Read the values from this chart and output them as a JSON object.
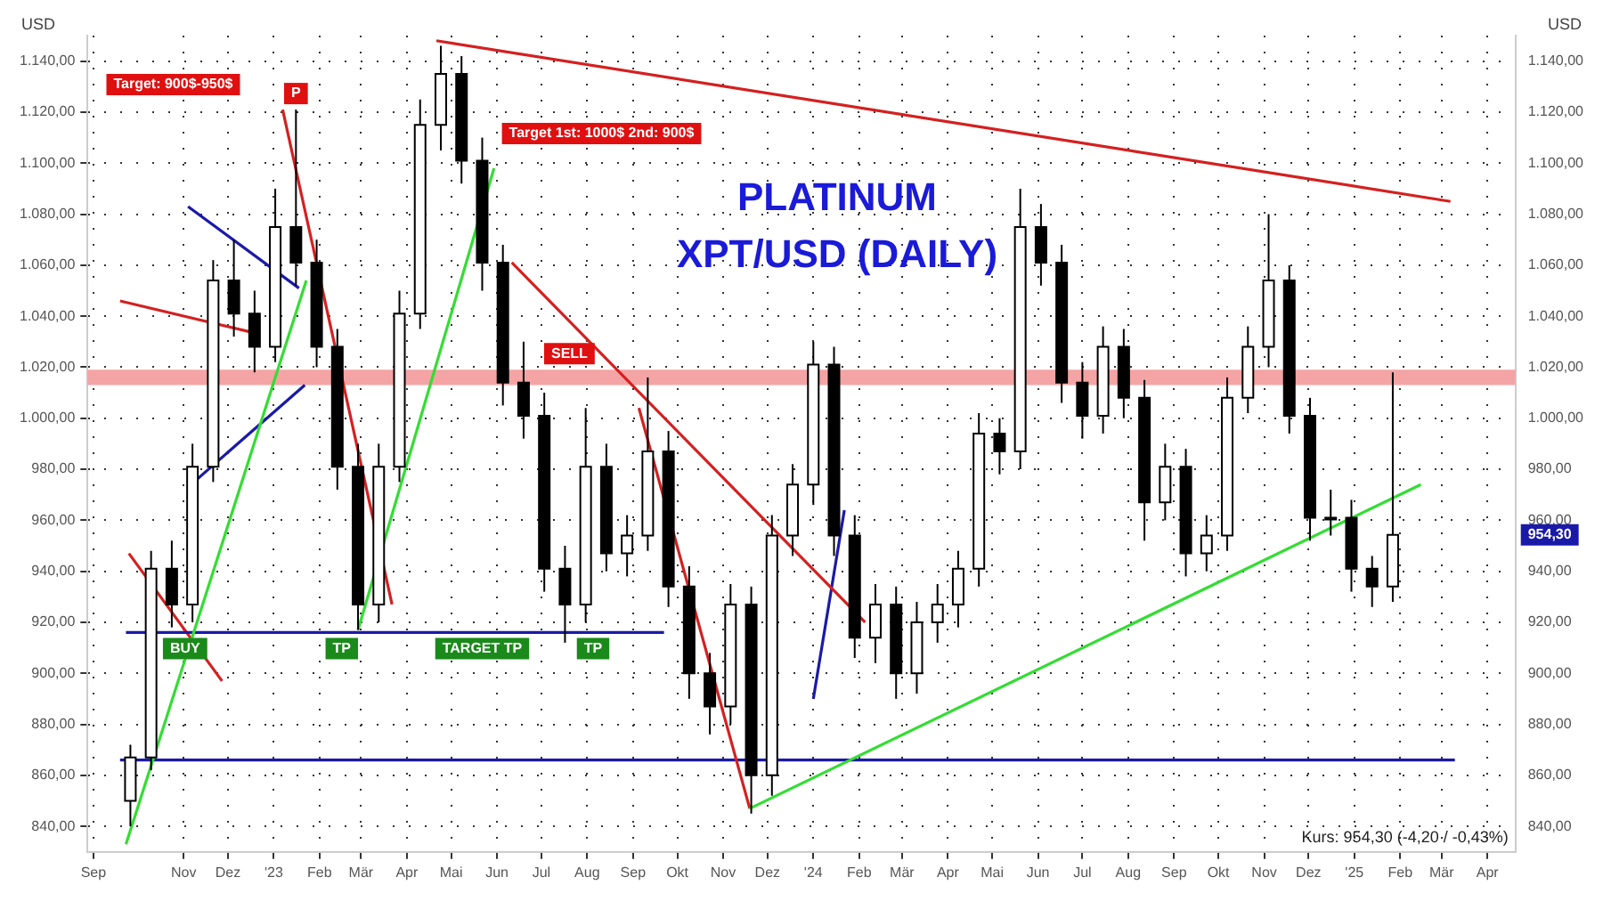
{
  "chart_data": {
    "type": "candlestick",
    "title": "PLATINUM",
    "subtitle": "XPT/USD (DAILY)",
    "ylabel": "USD",
    "y2label": "USD",
    "color": "#000000",
    "x": [
      "2022-09-26",
      "2022-10-10",
      "2022-10-24",
      "2022-11-07",
      "2022-11-21",
      "2022-12-05",
      "2022-12-19",
      "2023-01-02",
      "2023-01-16",
      "2023-01-30",
      "2023-02-13",
      "2023-02-27",
      "2023-03-13",
      "2023-03-27",
      "2023-04-10",
      "2023-04-24",
      "2023-05-08",
      "2023-05-22",
      "2023-06-05",
      "2023-06-19",
      "2023-07-03",
      "2023-07-17",
      "2023-07-31",
      "2023-08-14",
      "2023-08-28",
      "2023-09-11",
      "2023-09-25",
      "2023-10-09",
      "2023-10-23",
      "2023-11-06",
      "2023-11-20",
      "2023-12-04",
      "2023-12-18",
      "2024-01-01",
      "2024-01-15",
      "2024-01-29",
      "2024-02-12",
      "2024-02-26",
      "2024-03-11",
      "2024-03-25",
      "2024-04-08",
      "2024-04-22",
      "2024-05-06",
      "2024-05-20",
      "2024-06-03",
      "2024-06-17",
      "2024-07-01",
      "2024-07-15",
      "2024-07-29",
      "2024-08-12",
      "2024-08-26",
      "2024-09-09",
      "2024-09-23",
      "2024-10-07",
      "2024-10-21",
      "2024-11-04",
      "2024-11-18",
      "2024-12-02",
      "2024-12-16",
      "2024-12-30",
      "2025-01-13",
      "2025-01-27"
    ],
    "colors": [
      "#ffffff",
      "#ffffff",
      "#000000",
      "#ffffff",
      "#ffffff",
      "#000000",
      "#000000",
      "#ffffff",
      "#000000",
      "#000000",
      "#000000",
      "#000000",
      "#ffffff",
      "#ffffff",
      "#ffffff",
      "#ffffff",
      "#000000",
      "#000000",
      "#000000",
      "#000000",
      "#000000",
      "#000000",
      "#ffffff",
      "#000000",
      "#ffffff",
      "#ffffff",
      "#000000",
      "#000000",
      "#000000",
      "#ffffff",
      "#000000",
      "#ffffff",
      "#ffffff",
      "#ffffff",
      "#000000",
      "#000000",
      "#ffffff",
      "#000000",
      "#ffffff",
      "#ffffff",
      "#ffffff",
      "#ffffff",
      "#000000",
      "#ffffff",
      "#000000",
      "#000000",
      "#000000",
      "#ffffff",
      "#000000",
      "#000000",
      "#ffffff",
      "#000000",
      "#ffffff",
      "#ffffff",
      "#ffffff",
      "#ffffff",
      "#000000",
      "#000000",
      "#ffffff",
      "#000000",
      "#000000",
      "#ffffff"
    ],
    "ohlc": [
      [
        850,
        872,
        840,
        867
      ],
      [
        867,
        948,
        862,
        941
      ],
      [
        941,
        952,
        918,
        927
      ],
      [
        927,
        990,
        920,
        981
      ],
      [
        981,
        1062,
        975,
        1054
      ],
      [
        1054,
        1070,
        1032,
        1041
      ],
      [
        1041,
        1050,
        1018,
        1028
      ],
      [
        1028,
        1090,
        1022,
        1075
      ],
      [
        1075,
        1121,
        1052,
        1061
      ],
      [
        1061,
        1070,
        1020,
        1028
      ],
      [
        1028,
        1035,
        972,
        981
      ],
      [
        981,
        990,
        917,
        927
      ],
      [
        927,
        990,
        920,
        981
      ],
      [
        981,
        1050,
        975,
        1041
      ],
      [
        1041,
        1125,
        1035,
        1115
      ],
      [
        1115,
        1146,
        1105,
        1135
      ],
      [
        1135,
        1142,
        1092,
        1101
      ],
      [
        1101,
        1110,
        1050,
        1061
      ],
      [
        1061,
        1068,
        1005,
        1014
      ],
      [
        1014,
        1030,
        992,
        1001
      ],
      [
        1001,
        1010,
        932,
        941
      ],
      [
        941,
        950,
        912,
        927
      ],
      [
        927,
        1004,
        920,
        981
      ],
      [
        981,
        990,
        940,
        947
      ],
      [
        947,
        962,
        938,
        954
      ],
      [
        954,
        1016,
        948,
        987
      ],
      [
        987,
        995,
        926,
        934
      ],
      [
        934,
        942,
        890,
        900
      ],
      [
        900,
        908,
        876,
        887
      ],
      [
        887,
        935,
        880,
        927
      ],
      [
        927,
        934,
        845,
        860
      ],
      [
        860,
        962,
        852,
        954
      ],
      [
        954,
        982,
        946,
        974
      ],
      [
        974,
        1030,
        966,
        1021
      ],
      [
        1021,
        1028,
        946,
        954
      ],
      [
        954,
        962,
        906,
        914
      ],
      [
        914,
        935,
        904,
        927
      ],
      [
        927,
        934,
        890,
        900
      ],
      [
        900,
        928,
        892,
        920
      ],
      [
        920,
        935,
        912,
        927
      ],
      [
        927,
        948,
        918,
        941
      ],
      [
        941,
        1002,
        934,
        994
      ],
      [
        994,
        1000,
        978,
        987
      ],
      [
        987,
        1090,
        980,
        1075
      ],
      [
        1075,
        1084,
        1052,
        1061
      ],
      [
        1061,
        1068,
        1006,
        1014
      ],
      [
        1014,
        1022,
        992,
        1001
      ],
      [
        1001,
        1036,
        994,
        1028
      ],
      [
        1028,
        1035,
        1000,
        1008
      ],
      [
        1008,
        1015,
        952,
        967
      ],
      [
        967,
        990,
        960,
        981
      ],
      [
        981,
        988,
        938,
        947
      ],
      [
        947,
        962,
        940,
        954
      ],
      [
        954,
        1016,
        948,
        1008
      ],
      [
        1008,
        1036,
        1002,
        1028
      ],
      [
        1028,
        1080,
        1020,
        1054
      ],
      [
        1054,
        1060,
        994,
        1001
      ],
      [
        1001,
        1008,
        952,
        961
      ],
      [
        961,
        972,
        954,
        961
      ],
      [
        961,
        968,
        932,
        941
      ],
      [
        941,
        946,
        926,
        934
      ],
      [
        934,
        1018,
        928,
        954.3
      ]
    ],
    "series": [
      {
        "type": "line",
        "color": "#d42020",
        "x": [
          "2023-04-21",
          "2025-03-07"
        ],
        "values": [
          1148,
          1085
        ]
      },
      {
        "type": "line",
        "color": "#33dd33",
        "x": [
          "2023-11-19",
          "2025-02-15"
        ],
        "values": [
          847,
          974
        ]
      },
      {
        "type": "line",
        "color": "#d42020",
        "x": [
          "2023-06-11",
          "2024-02-05"
        ],
        "values": [
          1061,
          920
        ]
      },
      {
        "type": "line",
        "color": "#d42020",
        "x": [
          "2023-09-05",
          "2023-11-19"
        ],
        "values": [
          1004,
          847
        ]
      },
      {
        "type": "line",
        "color": "#d42020",
        "x": [
          "2023-01-07",
          "2023-03-22"
        ],
        "values": [
          1121,
          927
        ]
      },
      {
        "type": "line",
        "color": "#33dd33",
        "x": [
          "2023-02-27",
          "2023-05-30"
        ],
        "values": [
          917,
          1098
        ]
      },
      {
        "type": "line",
        "color": "#33dd33",
        "x": [
          "2022-09-23",
          "2023-01-23"
        ],
        "values": [
          833,
          1054
        ]
      },
      {
        "type": "line",
        "color": "#1a1aa8",
        "x": [
          "2022-09-23",
          "2023-09-22"
        ],
        "values": [
          916,
          916
        ]
      },
      {
        "type": "line",
        "color": "#1a1aa8",
        "x": [
          "2022-09-19",
          "2025-03-10"
        ],
        "values": [
          866,
          866
        ]
      },
      {
        "type": "line",
        "color": "#d42020",
        "x": [
          "2022-09-19",
          "2022-12-15"
        ],
        "values": [
          1046,
          1034
        ]
      },
      {
        "type": "line",
        "color": "#1a1aa8",
        "x": [
          "2022-11-04",
          "2023-01-18"
        ],
        "values": [
          1083,
          1051
        ]
      },
      {
        "type": "line",
        "color": "#1a1aa8",
        "x": [
          "2022-11-08",
          "2023-01-22"
        ],
        "values": [
          975,
          1013
        ]
      },
      {
        "type": "line",
        "color": "#1a1aa8",
        "x": [
          "2024-01-01",
          "2024-01-22"
        ],
        "values": [
          890,
          964
        ]
      },
      {
        "type": "line",
        "color": "#d42020",
        "x": [
          "2022-09-25",
          "2022-11-27"
        ],
        "values": [
          947,
          897
        ]
      }
    ],
    "bands": [
      {
        "axis": "y",
        "from": 1013,
        "to": 1019,
        "color": "#f4a4a4"
      }
    ],
    "annotations": [
      {
        "text": "P",
        "x": "2023-01-16",
        "y": 1121
      },
      "Target: 900$-950$",
      "Target 1st: 1000$ 2nd: 900$",
      {
        "text": "SELL",
        "x": "2023-07-20",
        "y": 1019
      },
      {
        "text": "BUY",
        "x": "2022-11-02",
        "y": 916
      },
      {
        "text": "TP",
        "x": "2023-02-16",
        "y": 916
      },
      {
        "text": "TARGET TP",
        "x": "2023-05-22",
        "y": 916
      },
      {
        "text": "TP",
        "x": "2023-08-05",
        "y": 916
      },
      "954,30",
      "Kurs: 954,30 (-4,20 / -0,43%)"
    ],
    "xlim": [
      "2022-08-28",
      "2025-04-20"
    ],
    "xticks": [
      {
        "value": "2022-09-01",
        "label": "Sep"
      },
      {
        "value": "2022-11-01",
        "label": "Nov"
      },
      {
        "value": "2022-12-01",
        "label": "Dez"
      },
      {
        "value": "2023-01-01",
        "label": "'23"
      },
      {
        "value": "2023-02-01",
        "label": "Feb"
      },
      {
        "value": "2023-03-01",
        "label": "Mär"
      },
      {
        "value": "2023-04-01",
        "label": "Apr"
      },
      {
        "value": "2023-05-01",
        "label": "Mai"
      },
      {
        "value": "2023-06-01",
        "label": "Jun"
      },
      {
        "value": "2023-07-01",
        "label": "Jul"
      },
      {
        "value": "2023-08-01",
        "label": "Aug"
      },
      {
        "value": "2023-09-01",
        "label": "Sep"
      },
      {
        "value": "2023-10-01",
        "label": "Okt"
      },
      {
        "value": "2023-11-01",
        "label": "Nov"
      },
      {
        "value": "2023-12-01",
        "label": "Dez"
      },
      {
        "value": "2024-01-01",
        "label": "'24"
      },
      {
        "value": "2024-02-01",
        "label": "Feb"
      },
      {
        "value": "2024-03-01",
        "label": "Mär"
      },
      {
        "value": "2024-04-01",
        "label": "Apr"
      },
      {
        "value": "2024-05-01",
        "label": "Mai"
      },
      {
        "value": "2024-06-01",
        "label": "Jun"
      },
      {
        "value": "2024-07-01",
        "label": "Jul"
      },
      {
        "value": "2024-08-01",
        "label": "Aug"
      },
      {
        "value": "2024-09-01",
        "label": "Sep"
      },
      {
        "value": "2024-10-01",
        "label": "Okt"
      },
      {
        "value": "2024-11-01",
        "label": "Nov"
      },
      {
        "value": "2024-12-01",
        "label": "Dez"
      },
      {
        "value": "2025-01-01",
        "label": "'25"
      },
      {
        "value": "2025-02-01",
        "label": "Feb"
      },
      {
        "value": "2025-03-01",
        "label": "Mär"
      },
      {
        "value": "2025-04-01",
        "label": "Apr"
      }
    ],
    "ylim": [
      830,
      1150
    ],
    "yticks": [
      {
        "value": 840,
        "label": "840,00"
      },
      {
        "value": 860,
        "label": "860,00"
      },
      {
        "value": 880,
        "label": "880,00"
      },
      {
        "value": 900,
        "label": "900,00"
      },
      {
        "value": 920,
        "label": "920,00"
      },
      {
        "value": 940,
        "label": "940,00"
      },
      {
        "value": 960,
        "label": "960,00"
      },
      {
        "value": 980,
        "label": "980,00"
      },
      {
        "value": 1000,
        "label": "1.000,00"
      },
      {
        "value": 1020,
        "label": "1.020,00"
      },
      {
        "value": 1040,
        "label": "1.040,00"
      },
      {
        "value": 1060,
        "label": "1.060,00"
      },
      {
        "value": 1080,
        "label": "1.080,00"
      },
      {
        "value": 1100,
        "label": "1.100,00"
      },
      {
        "value": 1120,
        "label": "1.120,00"
      },
      {
        "value": 1140,
        "label": "1.140,00"
      }
    ],
    "y2lim": [
      830,
      1150
    ],
    "y2ticks": [
      {
        "value": 840,
        "label": "840,00"
      },
      {
        "value": 860,
        "label": "860,00"
      },
      {
        "value": 880,
        "label": "880,00"
      },
      {
        "value": 900,
        "label": "900,00"
      },
      {
        "value": 920,
        "label": "920,00"
      },
      {
        "value": 940,
        "label": "940,00"
      },
      {
        "value": 960,
        "label": "960,00"
      },
      {
        "value": 980,
        "label": "980,00"
      },
      {
        "value": 1000,
        "label": "1.000,00"
      },
      {
        "value": 1020,
        "label": "1.020,00"
      },
      {
        "value": 1040,
        "label": "1.040,00"
      },
      {
        "value": 1060,
        "label": "1.060,00"
      },
      {
        "value": 1080,
        "label": "1.080,00"
      },
      {
        "value": 1100,
        "label": "1.100,00"
      },
      {
        "value": 1120,
        "label": "1.120,00"
      },
      {
        "value": 1140,
        "label": "1.140,00"
      }
    ],
    "grid": true,
    "legend": false,
    "marker": "none",
    "line_style": "solid"
  }
}
